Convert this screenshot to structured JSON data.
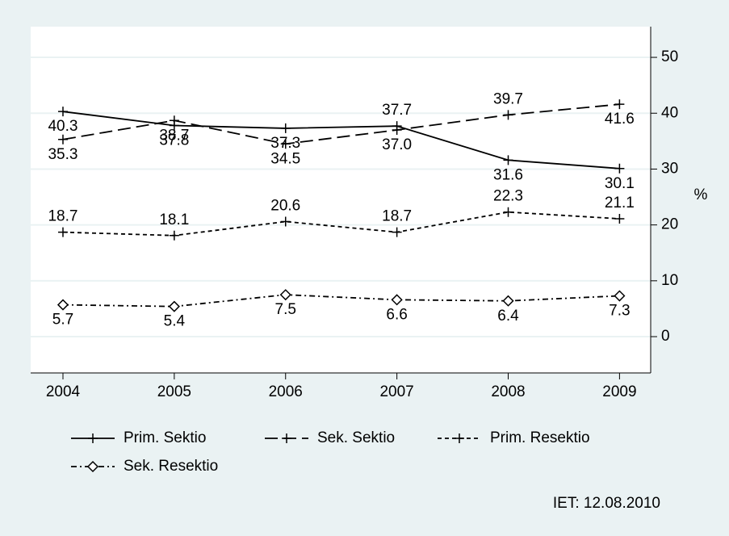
{
  "chart_data": {
    "type": "line",
    "x": [
      2004,
      2005,
      2006,
      2007,
      2008,
      2009
    ],
    "xlim": [
      2003.71,
      2009.28
    ],
    "xticks": [
      2004,
      2005,
      2006,
      2007,
      2008,
      2009
    ],
    "ylim": [
      -6.5,
      55.5
    ],
    "yticks": [
      0,
      10,
      20,
      30,
      40,
      50
    ],
    "y_label": "%",
    "grid": true,
    "legend": "bottom",
    "note": "IET: 12.08.2010",
    "series": [
      {
        "name": "Prim. Sektio",
        "color": "#000000",
        "line_style": "solid",
        "marker": "plus",
        "values": [
          40.3,
          37.8,
          37.3,
          37.7,
          31.6,
          30.1
        ]
      },
      {
        "name": "Sek. Sektio",
        "color": "#000000",
        "line_style": "long-dash",
        "marker": "plus",
        "values": [
          35.3,
          38.7,
          34.5,
          37.0,
          39.7,
          41.6
        ],
        "value_labels": [
          "35.3",
          "38.7",
          "34.5",
          "37.0",
          "39.7",
          "41.6"
        ]
      },
      {
        "name": "Prim. Resektio",
        "color": "#000000",
        "line_style": "short-dash",
        "marker": "plus",
        "values": [
          18.7,
          18.1,
          20.6,
          18.7,
          22.3,
          21.1
        ]
      },
      {
        "name": "Sek. Resektio",
        "color": "#000000",
        "line_style": "dash-dot",
        "marker": "diamond",
        "values": [
          5.7,
          5.4,
          7.5,
          6.6,
          6.4,
          7.3
        ]
      }
    ]
  }
}
